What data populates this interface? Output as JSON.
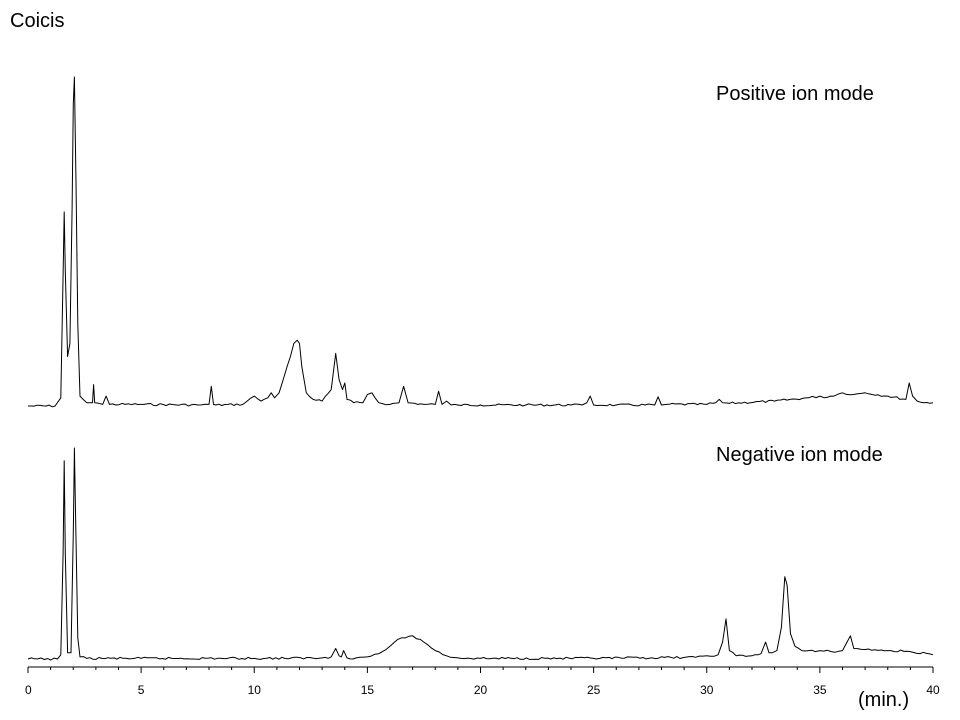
{
  "chart_data": {
    "type": "line",
    "title": "Coicis",
    "xlabel": "(min.)",
    "xlim": [
      0,
      40
    ],
    "xticks": [
      0,
      5,
      10,
      15,
      20,
      25,
      30,
      35,
      40
    ],
    "grid": false,
    "series": [
      {
        "name": "Positive ion mode",
        "baseline": 0.0,
        "ylim": [
          0,
          100
        ],
        "x": [
          0.0,
          1.2,
          1.45,
          1.55,
          1.6,
          1.65,
          1.75,
          1.85,
          1.95,
          2.0,
          2.05,
          2.12,
          2.2,
          2.3,
          2.6,
          2.85,
          2.9,
          2.95,
          3.3,
          3.45,
          3.6,
          5.0,
          7.5,
          8.0,
          8.1,
          8.2,
          8.3,
          9.5,
          10.0,
          10.3,
          10.6,
          10.75,
          10.9,
          11.1,
          11.3,
          11.45,
          11.6,
          11.75,
          11.9,
          12.0,
          12.1,
          12.3,
          12.6,
          13.0,
          13.4,
          13.6,
          13.75,
          13.9,
          14.0,
          14.1,
          14.4,
          14.8,
          15.0,
          15.2,
          15.5,
          16.0,
          16.4,
          16.6,
          16.8,
          17.5,
          18.0,
          18.15,
          18.3,
          18.5,
          18.7,
          19.0,
          20.0,
          22.0,
          24.0,
          24.5,
          24.7,
          24.85,
          25.0,
          26.0,
          27.7,
          27.85,
          28.0,
          28.2,
          30.0,
          30.4,
          30.55,
          30.7,
          31.0,
          33.0,
          34.5,
          35.0,
          35.2,
          36.0,
          36.5,
          37.0,
          38.0,
          38.8,
          38.95,
          39.1,
          39.3,
          39.6,
          40.0
        ],
        "y": [
          0.0,
          0.0,
          2.5,
          40.0,
          59.0,
          41.0,
          15.0,
          19.0,
          60.0,
          92.0,
          100.0,
          68.0,
          25.0,
          3.0,
          1.0,
          1.0,
          6.5,
          1.0,
          0.5,
          3.0,
          0.5,
          0.5,
          0.3,
          0.5,
          6.0,
          0.5,
          0.3,
          0.5,
          3.0,
          1.5,
          2.5,
          4.0,
          2.5,
          4.0,
          8.5,
          12.0,
          15.0,
          19.0,
          20.0,
          19.0,
          12.0,
          4.0,
          2.0,
          1.5,
          5.0,
          16.0,
          8.0,
          5.0,
          7.0,
          2.0,
          1.0,
          1.0,
          3.5,
          4.0,
          1.0,
          0.5,
          1.0,
          6.0,
          1.0,
          0.5,
          0.5,
          4.5,
          0.5,
          1.5,
          0.3,
          0.3,
          0.3,
          0.3,
          0.3,
          0.3,
          1.0,
          3.0,
          0.3,
          0.3,
          0.3,
          2.8,
          0.3,
          0.5,
          0.5,
          1.0,
          2.0,
          1.0,
          0.8,
          1.5,
          2.5,
          3.0,
          2.5,
          4.0,
          3.5,
          4.0,
          3.0,
          2.0,
          7.0,
          3.0,
          1.5,
          1.0,
          1.0
        ]
      },
      {
        "name": "Negative ion mode",
        "baseline": 0.0,
        "ylim": [
          0,
          100
        ],
        "x": [
          0.0,
          1.3,
          1.45,
          1.55,
          1.6,
          1.65,
          1.75,
          1.9,
          2.0,
          2.05,
          2.1,
          2.2,
          2.3,
          2.6,
          5.0,
          10.0,
          13.0,
          13.4,
          13.6,
          13.75,
          13.85,
          13.95,
          14.1,
          14.5,
          15.0,
          15.5,
          16.0,
          16.5,
          17.0,
          17.5,
          18.0,
          18.5,
          19.0,
          20.0,
          25.0,
          29.5,
          30.0,
          30.5,
          30.7,
          30.85,
          31.0,
          31.3,
          32.0,
          32.4,
          32.6,
          32.75,
          32.9,
          33.1,
          33.3,
          33.45,
          33.55,
          33.7,
          33.9,
          34.2,
          34.8,
          35.0,
          35.5,
          36.0,
          36.2,
          36.35,
          36.5,
          37.0,
          38.0,
          39.0,
          40.0
        ],
        "y": [
          0.0,
          0.0,
          2.0,
          50.0,
          94.0,
          50.0,
          3.0,
          3.0,
          60.0,
          100.0,
          70.0,
          10.0,
          1.0,
          0.3,
          0.3,
          0.3,
          0.5,
          1.0,
          5.0,
          1.5,
          1.0,
          4.0,
          0.5,
          0.5,
          1.0,
          2.5,
          6.0,
          10.0,
          11.0,
          8.0,
          4.0,
          1.5,
          0.5,
          0.3,
          0.3,
          0.8,
          1.5,
          2.0,
          8.0,
          19.0,
          4.0,
          1.5,
          1.5,
          2.5,
          8.0,
          3.0,
          3.0,
          4.0,
          15.0,
          39.0,
          35.0,
          12.0,
          6.0,
          4.0,
          3.5,
          4.0,
          3.5,
          4.0,
          8.0,
          11.0,
          5.0,
          4.5,
          4.0,
          3.5,
          2.0
        ]
      }
    ]
  }
}
